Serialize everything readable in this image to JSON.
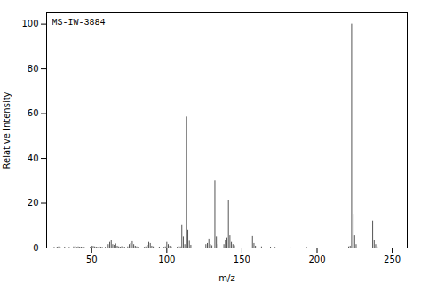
{
  "chart_data": {
    "type": "stem",
    "title": "MS-IW-3884",
    "xlabel": "m/z",
    "ylabel": "Relative Intensity",
    "xlim": [
      20,
      260
    ],
    "ylim": [
      0,
      105
    ],
    "xticks": [
      50,
      100,
      150,
      200,
      250
    ],
    "yticks": [
      0,
      20,
      40,
      60,
      80,
      100
    ],
    "color": "#555555",
    "grid": false,
    "x": [
      25,
      27,
      28,
      29,
      32,
      35,
      38,
      39,
      40,
      41,
      42,
      43,
      44,
      45,
      49,
      50,
      51,
      52,
      53,
      54,
      55,
      56,
      57,
      59,
      61,
      62,
      63,
      64,
      65,
      66,
      67,
      68,
      69,
      70,
      71,
      72,
      74,
      75,
      76,
      77,
      78,
      79,
      80,
      81,
      85,
      86,
      87,
      88,
      89,
      90,
      91,
      95,
      98,
      99,
      100,
      101,
      102,
      103,
      107,
      108,
      109,
      110,
      111,
      112,
      113,
      114,
      115,
      116,
      126,
      127,
      128,
      129,
      130,
      132,
      133,
      134,
      138,
      139,
      140,
      141,
      142,
      143,
      144,
      145,
      157,
      158,
      159,
      163,
      169,
      172,
      182,
      193,
      221,
      222,
      223,
      224,
      225,
      226,
      237,
      238,
      239,
      240
    ],
    "values": [
      0.3,
      0.4,
      0.5,
      0.3,
      0.4,
      0.3,
      0.5,
      0.8,
      0.3,
      0.5,
      0.4,
      0.4,
      0.3,
      0.3,
      0.3,
      0.8,
      0.7,
      0.5,
      0.4,
      0.3,
      0.5,
      0.4,
      0.3,
      0.3,
      1.5,
      2.5,
      3.5,
      1.5,
      1.2,
      1.8,
      0.8,
      0.5,
      0.4,
      0.6,
      0.4,
      0.3,
      0.5,
      1.5,
      2.0,
      2.8,
      1.5,
      0.8,
      0.5,
      0.3,
      0.3,
      0.5,
      1.2,
      2.5,
      2.0,
      0.8,
      0.5,
      0.4,
      0.3,
      0.5,
      2.5,
      1.5,
      0.8,
      0.5,
      0.4,
      0.8,
      0.5,
      10.0,
      5.0,
      1.5,
      58.5,
      8.0,
      3.0,
      1.2,
      1.5,
      2.0,
      4.0,
      1.5,
      1.0,
      30.0,
      5.0,
      1.5,
      1.5,
      3.5,
      4.5,
      21.0,
      5.5,
      2.5,
      1.5,
      1.0,
      5.2,
      2.0,
      0.8,
      0.5,
      0.4,
      0.3,
      0.3,
      0.3,
      0.5,
      0.8,
      100.0,
      15.0,
      5.5,
      1.5,
      12.0,
      3.5,
      1.5,
      0.5
    ]
  }
}
